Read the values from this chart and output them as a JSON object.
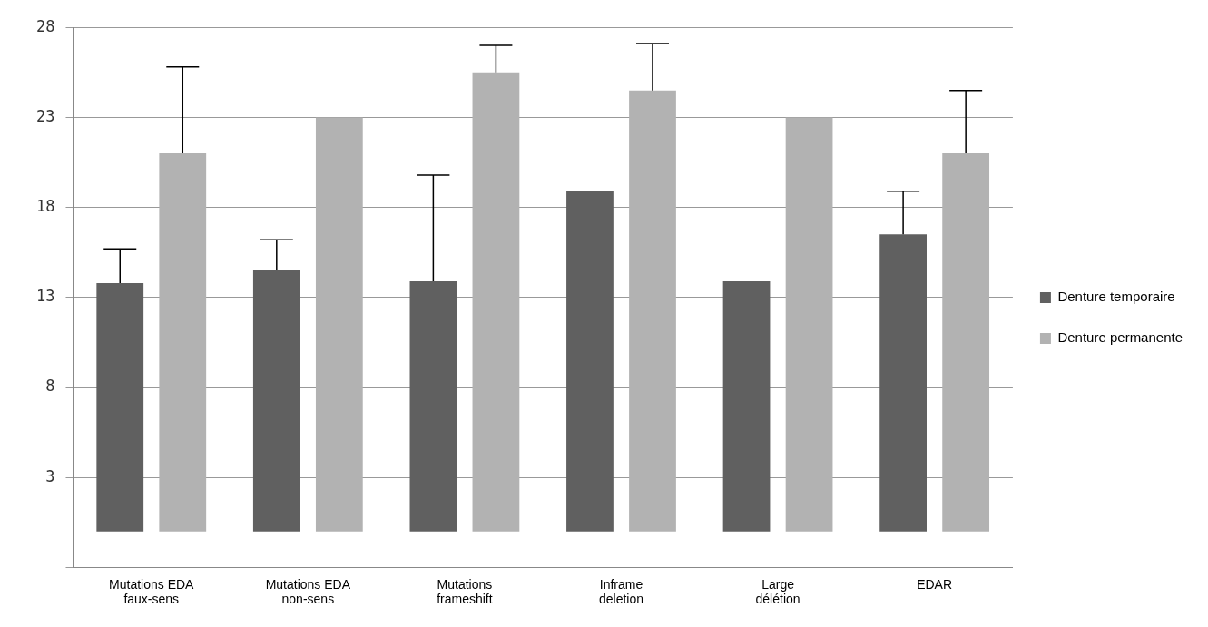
{
  "chart_data": {
    "type": "bar",
    "categories": [
      "Mutations EDA faux-sens",
      "Mutations EDA non-sens",
      "Mutations frameshift",
      "Inframe deletion",
      "Large délétion",
      "EDAR"
    ],
    "series": [
      {
        "name": "Denture temporaire",
        "color": "#606060",
        "values": [
          13.8,
          14.5,
          13.9,
          18.9,
          13.9,
          16.5
        ],
        "errors": [
          [
            13.8,
            15.7
          ],
          [
            14.5,
            16.2
          ],
          [
            13.9,
            19.8
          ],
          null,
          null,
          [
            16.5,
            18.9
          ]
        ]
      },
      {
        "name": "Denture permanente",
        "color": "#b2b2b2",
        "values": [
          21.0,
          23.0,
          25.5,
          24.5,
          23.0,
          21.0
        ],
        "errors": [
          [
            21.0,
            25.8
          ],
          null,
          [
            25.5,
            27.0
          ],
          [
            24.5,
            27.1
          ],
          null,
          [
            21.0,
            24.5
          ]
        ]
      }
    ],
    "ylim": [
      -2,
      28
    ],
    "yticks": [
      {
        "value": -2,
        "label": null
      },
      3,
      8,
      13,
      18,
      23,
      28
    ],
    "grid": "y",
    "legend": "right"
  }
}
